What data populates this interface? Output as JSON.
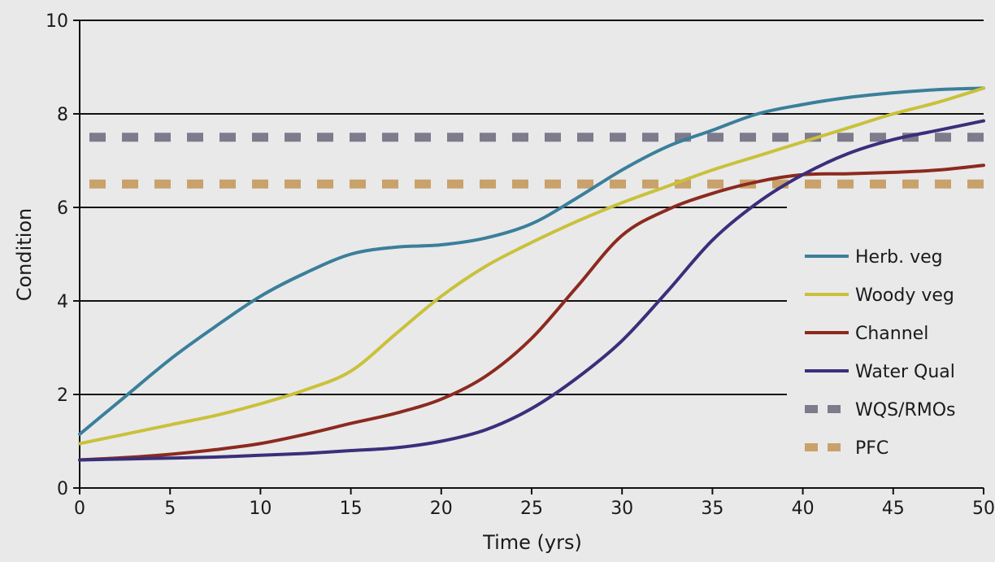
{
  "chart_data": {
    "type": "line",
    "xlabel": "Time (yrs)",
    "ylabel": "Condition",
    "xlim": [
      0,
      50
    ],
    "ylim": [
      0,
      10
    ],
    "xticks": [
      "0",
      "5",
      "10",
      "15",
      "20",
      "25",
      "30",
      "35",
      "40",
      "45",
      "50"
    ],
    "yticks": [
      "0",
      "2",
      "4",
      "6",
      "8",
      "10"
    ],
    "grid": "horizontal",
    "legend_position": "right",
    "series": [
      {
        "name": "Herb. veg",
        "color": "#3b7f9a",
        "style": "solid",
        "x": [
          0,
          2.5,
          5,
          7.5,
          10,
          12.5,
          15,
          17.5,
          20,
          22.5,
          25,
          27.5,
          30,
          32.5,
          35,
          37.5,
          40,
          42.5,
          45,
          47.5,
          50
        ],
        "y": [
          1.15,
          1.95,
          2.75,
          3.45,
          4.1,
          4.6,
          5.0,
          5.15,
          5.2,
          5.35,
          5.65,
          6.2,
          6.8,
          7.3,
          7.65,
          8.0,
          8.2,
          8.35,
          8.45,
          8.52,
          8.55
        ]
      },
      {
        "name": "Woody veg",
        "color": "#c9c13a",
        "style": "solid",
        "x": [
          0,
          2.5,
          5,
          7.5,
          10,
          12.5,
          15,
          17.5,
          20,
          22.5,
          25,
          27.5,
          30,
          32.5,
          35,
          37.5,
          40,
          42.5,
          45,
          47.5,
          50
        ],
        "y": [
          0.95,
          1.15,
          1.35,
          1.55,
          1.8,
          2.1,
          2.5,
          3.3,
          4.1,
          4.75,
          5.25,
          5.7,
          6.1,
          6.45,
          6.8,
          7.1,
          7.4,
          7.7,
          8.0,
          8.25,
          8.55
        ]
      },
      {
        "name": "Channel",
        "color": "#8c2a1e",
        "style": "solid",
        "x": [
          0,
          2.5,
          5,
          7.5,
          10,
          12.5,
          15,
          17.5,
          20,
          22.5,
          25,
          27.5,
          30,
          32.5,
          35,
          37.5,
          40,
          42.5,
          45,
          47.5,
          50
        ],
        "y": [
          0.6,
          0.65,
          0.72,
          0.82,
          0.95,
          1.15,
          1.38,
          1.6,
          1.9,
          2.4,
          3.2,
          4.3,
          5.4,
          5.95,
          6.3,
          6.55,
          6.7,
          6.72,
          6.75,
          6.8,
          6.9
        ]
      },
      {
        "name": "Water Qual",
        "color": "#3a2f7a",
        "style": "solid",
        "x": [
          0,
          2.5,
          5,
          7.5,
          10,
          12.5,
          15,
          17.5,
          20,
          22.5,
          25,
          27.5,
          30,
          32.5,
          35,
          37.5,
          40,
          42.5,
          45,
          47.5,
          50
        ],
        "y": [
          0.6,
          0.62,
          0.64,
          0.66,
          0.7,
          0.74,
          0.8,
          0.86,
          1.0,
          1.25,
          1.7,
          2.35,
          3.15,
          4.2,
          5.3,
          6.1,
          6.7,
          7.15,
          7.45,
          7.65,
          7.85
        ]
      },
      {
        "name": "WQS/RMOs",
        "color": "#7e7b8c",
        "style": "dashed",
        "x": [
          0,
          50
        ],
        "y": [
          7.5,
          7.5
        ]
      },
      {
        "name": "PFC",
        "color": "#c9a16a",
        "style": "dashed",
        "x": [
          0,
          50
        ],
        "y": [
          6.5,
          6.5
        ]
      }
    ]
  }
}
